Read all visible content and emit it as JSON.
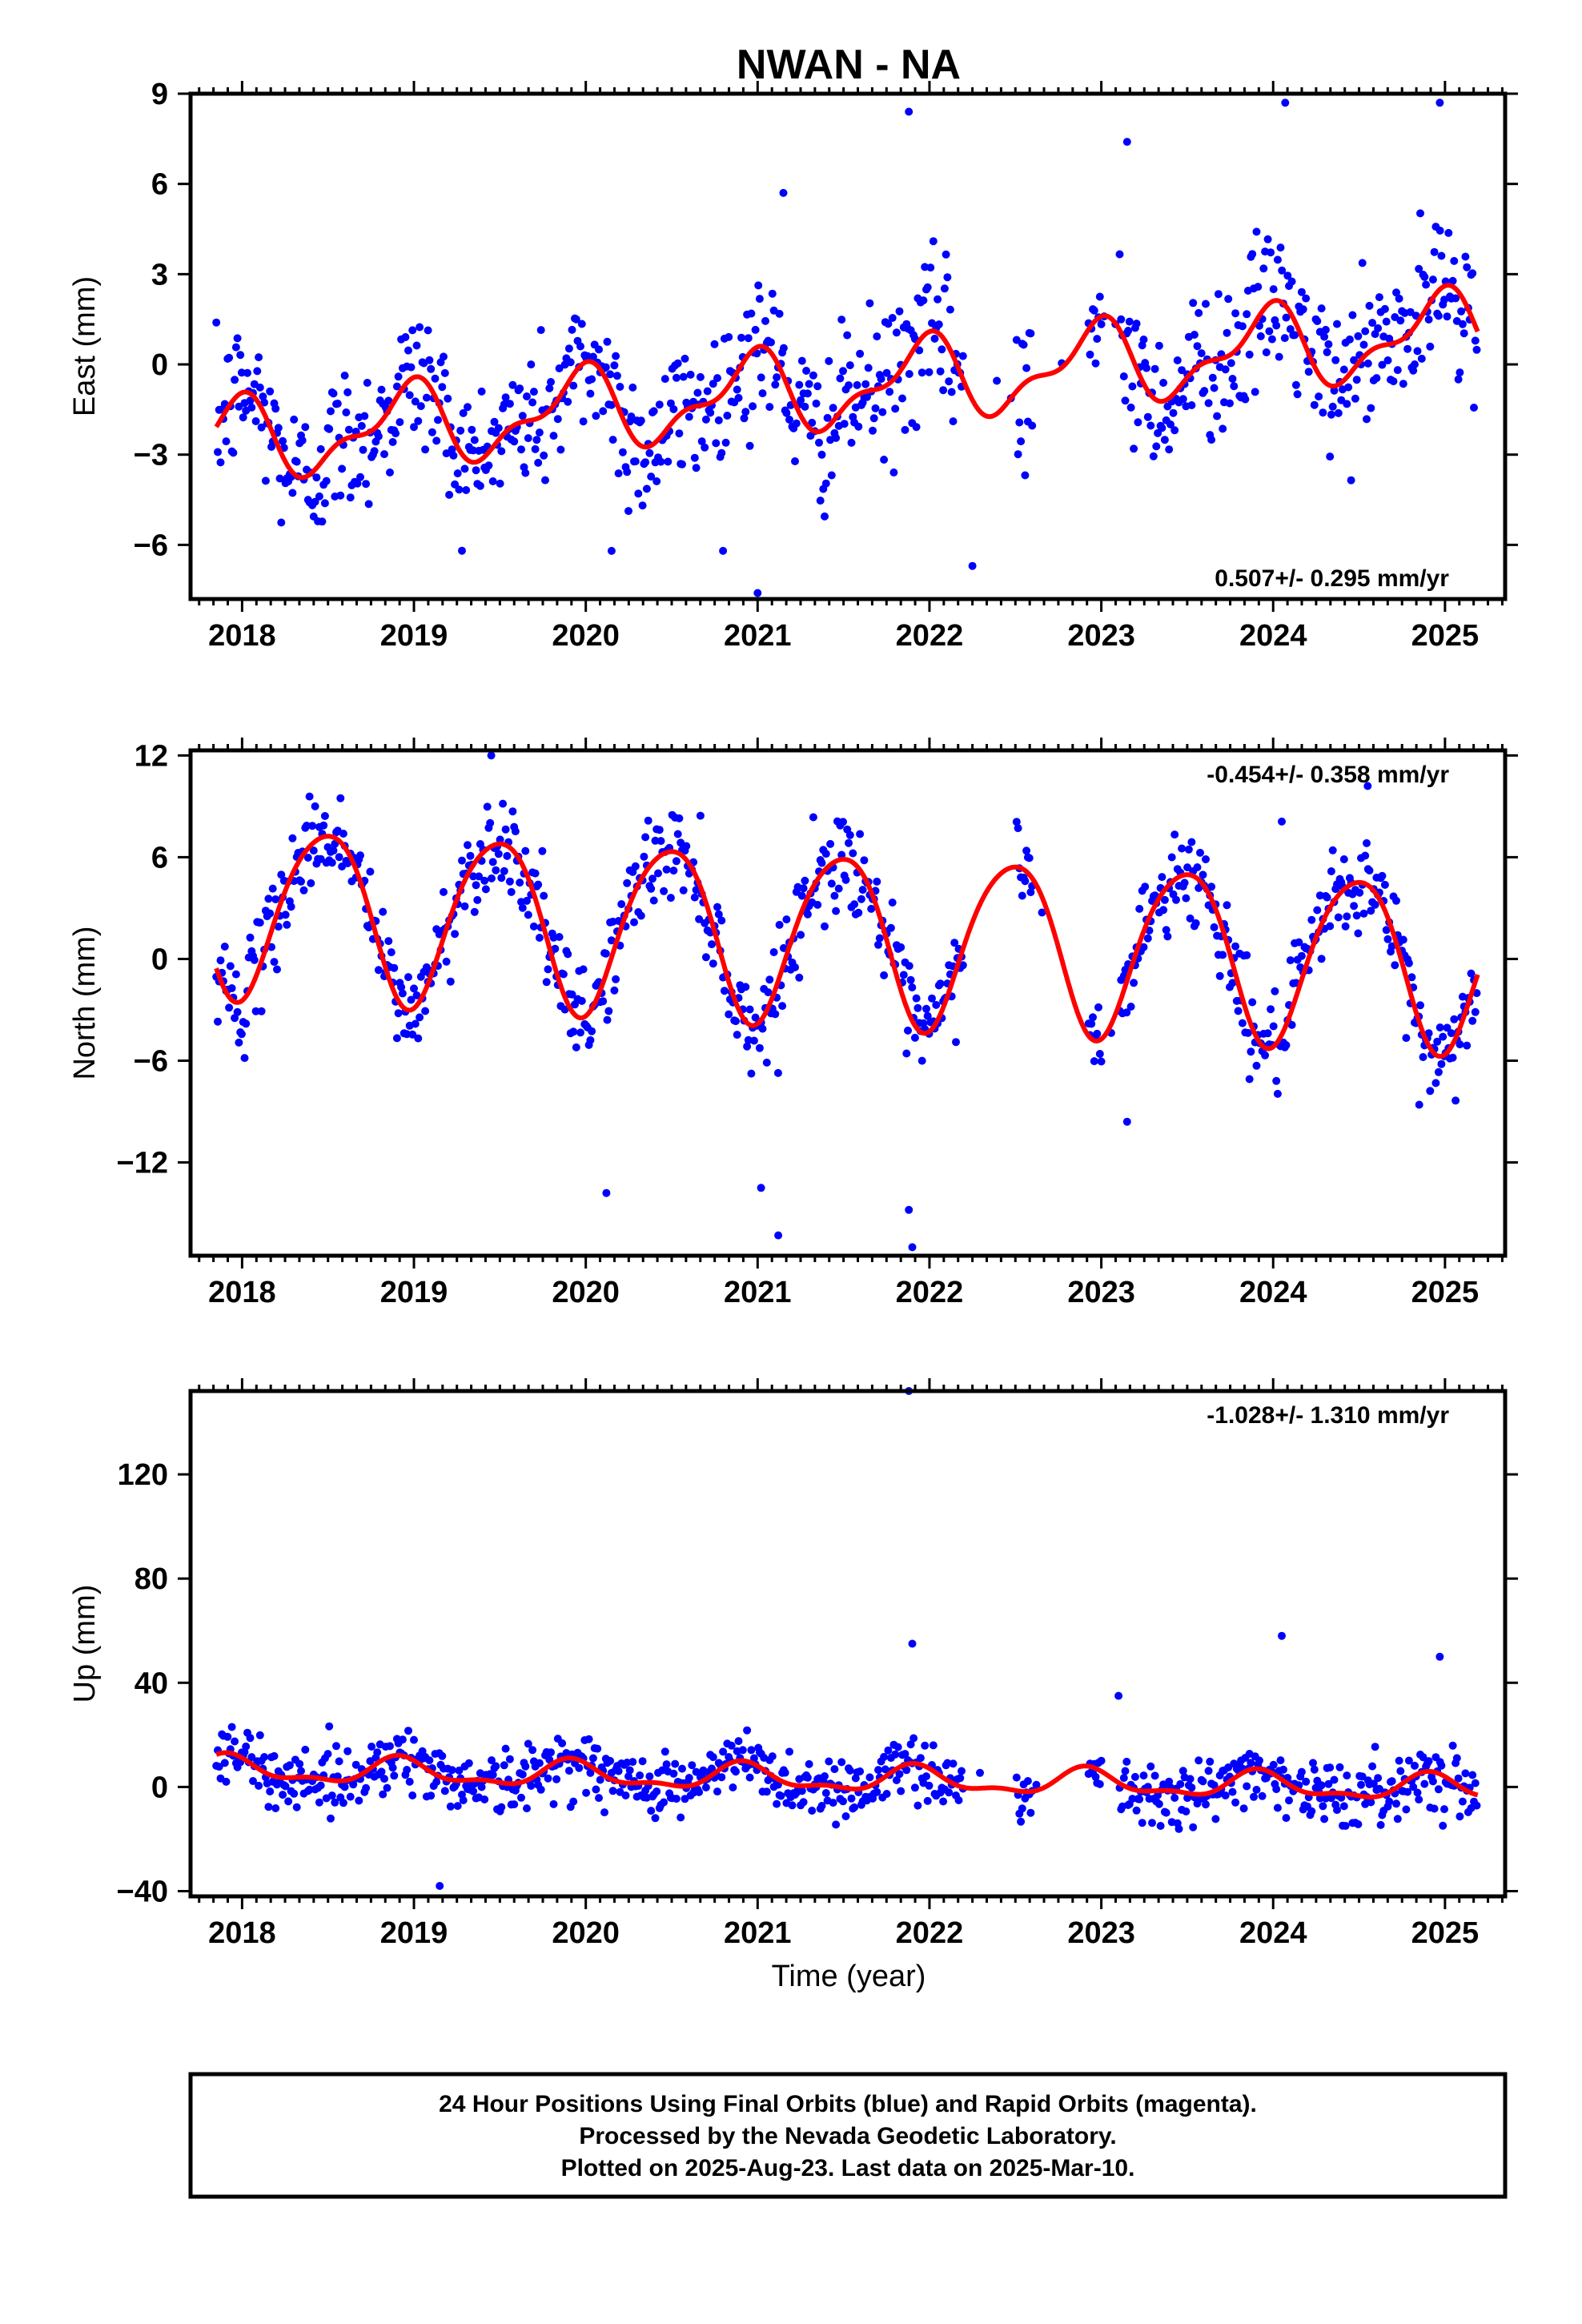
{
  "title": "NWAN - NA",
  "x_axis_label": "Time (year)",
  "footer": {
    "line1": "24 Hour Positions Using Final Orbits (blue) and Rapid Orbits (magenta).",
    "line2": "Processed by the Nevada Geodetic Laboratory.",
    "line3": "Plotted on 2025-Aug-23. Last data on 2025-Mar-10."
  },
  "colors": {
    "points": "#0000ff",
    "model": "#ff0000",
    "frame": "#000000"
  },
  "chart_data": [
    {
      "type": "scatter",
      "ylabel": "East (mm)",
      "xlim": [
        2017.7,
        2025.35
      ],
      "ylim": [
        -7.8,
        9
      ],
      "xticks": [
        2018,
        2019,
        2020,
        2021,
        2022,
        2023,
        2024,
        2025
      ],
      "yticks": [
        -6,
        -3,
        0,
        3,
        6,
        9
      ],
      "ytick_labels": [
        "−6",
        "−3",
        "0",
        "3",
        "6",
        "9"
      ],
      "rate_label": "0.507+/- 0.295 mm/yr",
      "rate_position": "bottom-right",
      "data_start": 2017.85,
      "data_end": 2025.19,
      "model": {
        "offset": -0.75,
        "trend": 0.507,
        "annual_amp": 1.2,
        "annual_phase_year_fraction": 0.95,
        "semiannual_amp": 0.55,
        "semiannual_phase_year_fraction": 0.05
      },
      "scatter_sd": 1.25,
      "gaps": [
        [
          2022.2,
          2022.5
        ],
        [
          2022.6,
          2022.92
        ],
        [
          2023.0,
          2023.1
        ]
      ],
      "outliers": [
        [
          2021.88,
          8.4
        ],
        [
          2024.07,
          8.7
        ],
        [
          2024.97,
          8.7
        ],
        [
          2021.0,
          -7.6
        ],
        [
          2022.25,
          -6.7
        ],
        [
          2020.15,
          -6.2
        ],
        [
          2021.15,
          5.7
        ],
        [
          2023.15,
          7.4
        ]
      ]
    },
    {
      "type": "scatter",
      "ylabel": "North (mm)",
      "xlim": [
        2017.7,
        2025.35
      ],
      "ylim": [
        -17.5,
        12.3
      ],
      "xticks": [
        2018,
        2019,
        2020,
        2021,
        2022,
        2023,
        2024,
        2025
      ],
      "yticks": [
        -12,
        -6,
        0,
        6,
        12
      ],
      "ytick_labels": [
        "−12",
        "−6",
        "0",
        "6",
        "12"
      ],
      "rate_label": "-0.454+/- 0.358 mm/yr",
      "rate_position": "top-right",
      "data_start": 2017.85,
      "data_end": 2025.19,
      "model": {
        "offset": 1.4,
        "trend": -0.454,
        "annual_amp": 5.0,
        "annual_phase_year_fraction": 0.48,
        "semiannual_amp": 0.6,
        "semiannual_phase_year_fraction": 0.2
      },
      "scatter_sd": 1.4,
      "gaps": [
        [
          2022.2,
          2022.5
        ],
        [
          2022.6,
          2022.92
        ],
        [
          2023.0,
          2023.1
        ]
      ],
      "outliers": [
        [
          2019.45,
          12.0
        ],
        [
          2021.9,
          -17.0
        ],
        [
          2021.88,
          -14.8
        ],
        [
          2021.02,
          -13.5
        ],
        [
          2021.12,
          -16.3
        ],
        [
          2020.12,
          -13.8
        ],
        [
          2024.55,
          10.2
        ],
        [
          2024.05,
          8.1
        ],
        [
          2023.15,
          -9.6
        ],
        [
          2024.85,
          -8.6
        ]
      ]
    },
    {
      "type": "scatter",
      "ylabel": "Up (mm)",
      "xlim": [
        2017.7,
        2025.35
      ],
      "ylim": [
        -42,
        152
      ],
      "xticks": [
        2018,
        2019,
        2020,
        2021,
        2022,
        2023,
        2024,
        2025
      ],
      "yticks": [
        -40,
        0,
        40,
        80,
        120
      ],
      "ytick_labels": [
        "−40",
        "0",
        "40",
        "80",
        "120"
      ],
      "rate_label": "-1.028+/- 1.310 mm/yr",
      "rate_position": "top-right",
      "data_start": 2017.85,
      "data_end": 2025.19,
      "model": {
        "offset": 3.0,
        "trend": -1.028,
        "annual_amp": 4.5,
        "annual_phase_year_fraction": 0.92,
        "semiannual_amp": 2.0,
        "semiannual_phase_year_fraction": 0.9
      },
      "scatter_sd": 6.0,
      "gaps": [
        [
          2022.2,
          2022.5
        ],
        [
          2022.6,
          2022.92
        ],
        [
          2023.0,
          2023.1
        ]
      ],
      "outliers": [
        [
          2021.88,
          152
        ],
        [
          2024.05,
          58
        ],
        [
          2021.9,
          55
        ],
        [
          2024.97,
          50
        ],
        [
          2019.15,
          -38
        ],
        [
          2023.1,
          35
        ]
      ]
    }
  ]
}
